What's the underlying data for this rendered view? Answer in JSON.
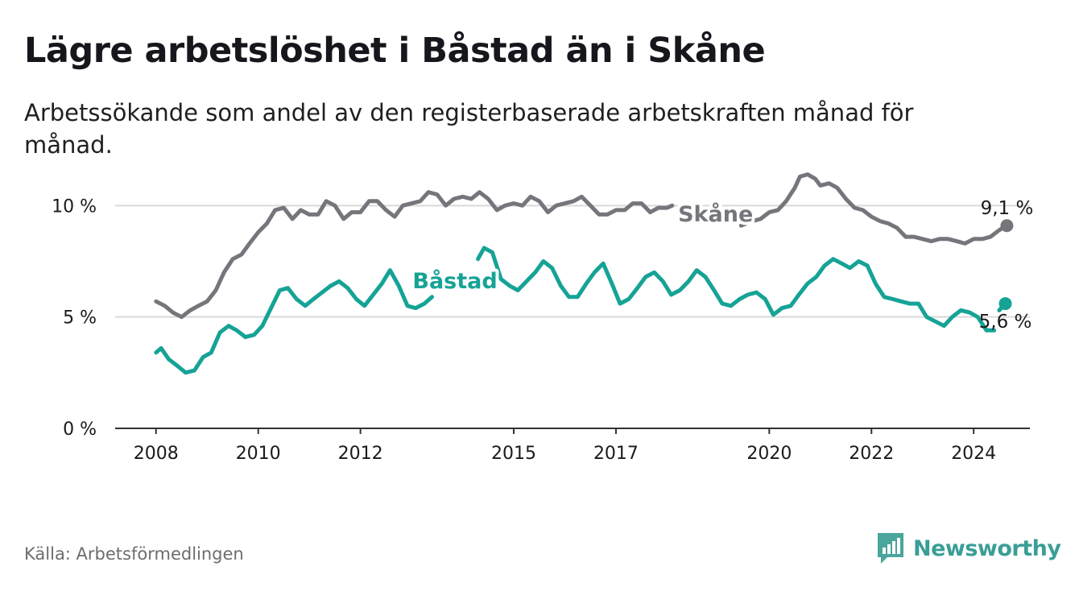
{
  "title": "Lägre arbetslöshet i Båstad än i Skåne",
  "subtitle": "Arbetssökande som andel av den registerbaserade arbetskraften månad för månad.",
  "source": "Källa: Arbetsförmedlingen",
  "brand": {
    "name": "Newsworthy",
    "icon": "newsworthy-logo-icon"
  },
  "colors": {
    "skane": "#76757c",
    "bastad": "#16a396",
    "grid": "#d9d9d9",
    "axis": "#333333",
    "text": "#1a1a1a"
  },
  "chart_data": {
    "type": "line",
    "ylim": [
      0,
      12
    ],
    "xlim": [
      2007.2,
      2025.1
    ],
    "yticks": [
      {
        "value": 0,
        "label": "0 %"
      },
      {
        "value": 5,
        "label": "5 %"
      },
      {
        "value": 10,
        "label": "10 %"
      }
    ],
    "xticks": [
      {
        "value": 2008,
        "label": "2008"
      },
      {
        "value": 2010,
        "label": "2010"
      },
      {
        "value": 2012,
        "label": "2012"
      },
      {
        "value": 2015,
        "label": "2015"
      },
      {
        "value": 2017,
        "label": "2017"
      },
      {
        "value": 2020,
        "label": "2020"
      },
      {
        "value": 2022,
        "label": "2022"
      },
      {
        "value": 2024,
        "label": "2024"
      }
    ],
    "series": [
      {
        "name": "Skåne",
        "label": "Skåne",
        "end_label": "9,1 %",
        "end_value": 9.1,
        "points": [
          [
            2008.0,
            5.7
          ],
          [
            2008.17,
            5.5
          ],
          [
            2008.33,
            5.2
          ],
          [
            2008.5,
            5.0
          ],
          [
            2008.67,
            5.3
          ],
          [
            2008.83,
            5.5
          ],
          [
            2009.0,
            5.7
          ],
          [
            2009.17,
            6.2
          ],
          [
            2009.33,
            7.0
          ],
          [
            2009.5,
            7.6
          ],
          [
            2009.67,
            7.8
          ],
          [
            2009.83,
            8.3
          ],
          [
            2010.0,
            8.8
          ],
          [
            2010.17,
            9.2
          ],
          [
            2010.33,
            9.8
          ],
          [
            2010.5,
            9.9
          ],
          [
            2010.67,
            9.4
          ],
          [
            2010.83,
            9.8
          ],
          [
            2011.0,
            9.6
          ],
          [
            2011.17,
            9.6
          ],
          [
            2011.33,
            10.2
          ],
          [
            2011.5,
            10.0
          ],
          [
            2011.67,
            9.4
          ],
          [
            2011.83,
            9.7
          ],
          [
            2012.0,
            9.7
          ],
          [
            2012.17,
            10.2
          ],
          [
            2012.33,
            10.2
          ],
          [
            2012.5,
            9.8
          ],
          [
            2012.67,
            9.5
          ],
          [
            2012.83,
            10.0
          ],
          [
            2013.0,
            10.1
          ],
          [
            2013.17,
            10.2
          ],
          [
            2013.33,
            10.6
          ],
          [
            2013.5,
            10.5
          ],
          [
            2013.67,
            10.0
          ],
          [
            2013.83,
            10.3
          ],
          [
            2014.0,
            10.4
          ],
          [
            2014.17,
            10.3
          ],
          [
            2014.33,
            10.6
          ],
          [
            2014.5,
            10.3
          ],
          [
            2014.67,
            9.8
          ],
          [
            2014.83,
            10.0
          ],
          [
            2015.0,
            10.1
          ],
          [
            2015.17,
            10.0
          ],
          [
            2015.33,
            10.4
          ],
          [
            2015.5,
            10.2
          ],
          [
            2015.67,
            9.7
          ],
          [
            2015.83,
            10.0
          ],
          [
            2016.0,
            10.1
          ],
          [
            2016.17,
            10.2
          ],
          [
            2016.33,
            10.4
          ],
          [
            2016.5,
            10.0
          ],
          [
            2016.67,
            9.6
          ],
          [
            2016.83,
            9.6
          ],
          [
            2017.0,
            9.8
          ],
          [
            2017.17,
            9.8
          ],
          [
            2017.33,
            10.1
          ],
          [
            2017.5,
            10.1
          ],
          [
            2017.67,
            9.7
          ],
          [
            2017.83,
            9.9
          ],
          [
            2018.0,
            9.9
          ],
          [
            2018.1,
            10.0
          ],
          null,
          [
            2019.45,
            9.1
          ],
          [
            2019.67,
            9.3
          ],
          [
            2019.83,
            9.4
          ],
          [
            2020.0,
            9.7
          ],
          [
            2020.17,
            9.8
          ],
          [
            2020.33,
            10.2
          ],
          [
            2020.5,
            10.8
          ],
          [
            2020.6,
            11.3
          ],
          [
            2020.75,
            11.4
          ],
          [
            2020.9,
            11.2
          ],
          [
            2021.0,
            10.9
          ],
          [
            2021.17,
            11.0
          ],
          [
            2021.33,
            10.8
          ],
          [
            2021.5,
            10.3
          ],
          [
            2021.67,
            9.9
          ],
          [
            2021.83,
            9.8
          ],
          [
            2022.0,
            9.5
          ],
          [
            2022.17,
            9.3
          ],
          [
            2022.33,
            9.2
          ],
          [
            2022.5,
            9.0
          ],
          [
            2022.67,
            8.6
          ],
          [
            2022.83,
            8.6
          ],
          [
            2023.0,
            8.5
          ],
          [
            2023.17,
            8.4
          ],
          [
            2023.33,
            8.5
          ],
          [
            2023.5,
            8.5
          ],
          [
            2023.67,
            8.4
          ],
          [
            2023.83,
            8.3
          ],
          [
            2024.0,
            8.5
          ],
          [
            2024.17,
            8.5
          ],
          [
            2024.33,
            8.6
          ],
          [
            2024.5,
            8.9
          ],
          [
            2024.65,
            9.1
          ]
        ]
      },
      {
        "name": "Båstad",
        "label": "Båstad",
        "end_label": "5,6 %",
        "end_value": 5.6,
        "points": [
          [
            2008.0,
            3.4
          ],
          [
            2008.1,
            3.6
          ],
          [
            2008.25,
            3.1
          ],
          [
            2008.42,
            2.8
          ],
          [
            2008.58,
            2.5
          ],
          [
            2008.75,
            2.6
          ],
          [
            2008.92,
            3.2
          ],
          [
            2009.08,
            3.4
          ],
          [
            2009.25,
            4.3
          ],
          [
            2009.42,
            4.6
          ],
          [
            2009.58,
            4.4
          ],
          [
            2009.75,
            4.1
          ],
          [
            2009.92,
            4.2
          ],
          [
            2010.08,
            4.6
          ],
          [
            2010.25,
            5.4
          ],
          [
            2010.42,
            6.2
          ],
          [
            2010.58,
            6.3
          ],
          [
            2010.75,
            5.8
          ],
          [
            2010.92,
            5.5
          ],
          [
            2011.08,
            5.8
          ],
          [
            2011.25,
            6.1
          ],
          [
            2011.42,
            6.4
          ],
          [
            2011.58,
            6.6
          ],
          [
            2011.75,
            6.3
          ],
          [
            2011.92,
            5.8
          ],
          [
            2012.08,
            5.5
          ],
          [
            2012.25,
            6.0
          ],
          [
            2012.42,
            6.5
          ],
          [
            2012.58,
            7.1
          ],
          [
            2012.75,
            6.4
          ],
          [
            2012.92,
            5.5
          ],
          [
            2013.08,
            5.4
          ],
          [
            2013.25,
            5.6
          ],
          [
            2013.4,
            5.9
          ],
          null,
          [
            2014.3,
            7.6
          ],
          [
            2014.42,
            8.1
          ],
          [
            2014.58,
            7.9
          ],
          [
            2014.75,
            6.7
          ],
          [
            2014.92,
            6.4
          ],
          [
            2015.08,
            6.2
          ],
          [
            2015.25,
            6.6
          ],
          [
            2015.42,
            7.0
          ],
          [
            2015.58,
            7.5
          ],
          [
            2015.75,
            7.2
          ],
          [
            2015.92,
            6.4
          ],
          [
            2016.08,
            5.9
          ],
          [
            2016.25,
            5.9
          ],
          [
            2016.42,
            6.5
          ],
          [
            2016.58,
            7.0
          ],
          [
            2016.75,
            7.4
          ],
          [
            2016.92,
            6.5
          ],
          [
            2017.08,
            5.6
          ],
          [
            2017.25,
            5.8
          ],
          [
            2017.42,
            6.3
          ],
          [
            2017.58,
            6.8
          ],
          [
            2017.75,
            7.0
          ],
          [
            2017.92,
            6.6
          ],
          [
            2018.08,
            6.0
          ],
          [
            2018.25,
            6.2
          ],
          [
            2018.42,
            6.6
          ],
          [
            2018.58,
            7.1
          ],
          [
            2018.75,
            6.8
          ],
          [
            2018.92,
            6.2
          ],
          [
            2019.08,
            5.6
          ],
          [
            2019.25,
            5.5
          ],
          [
            2019.42,
            5.8
          ],
          [
            2019.58,
            6.0
          ],
          [
            2019.75,
            6.1
          ],
          [
            2019.92,
            5.8
          ],
          [
            2020.08,
            5.1
          ],
          [
            2020.25,
            5.4
          ],
          [
            2020.42,
            5.5
          ],
          [
            2020.58,
            6.0
          ],
          [
            2020.75,
            6.5
          ],
          [
            2020.92,
            6.8
          ],
          [
            2021.08,
            7.3
          ],
          [
            2021.25,
            7.6
          ],
          [
            2021.42,
            7.4
          ],
          [
            2021.58,
            7.2
          ],
          [
            2021.75,
            7.5
          ],
          [
            2021.92,
            7.3
          ],
          [
            2022.08,
            6.5
          ],
          [
            2022.25,
            5.9
          ],
          [
            2022.42,
            5.8
          ],
          [
            2022.58,
            5.7
          ],
          [
            2022.75,
            5.6
          ],
          [
            2022.92,
            5.6
          ],
          [
            2023.08,
            5.0
          ],
          [
            2023.25,
            4.8
          ],
          [
            2023.42,
            4.6
          ],
          [
            2023.58,
            5.0
          ],
          [
            2023.75,
            5.3
          ],
          [
            2023.92,
            5.2
          ],
          [
            2024.08,
            5.0
          ],
          [
            2024.25,
            4.4
          ],
          [
            2024.4,
            4.4
          ],
          null,
          [
            2024.5,
            5.3
          ],
          [
            2024.62,
            5.6
          ]
        ]
      }
    ]
  }
}
